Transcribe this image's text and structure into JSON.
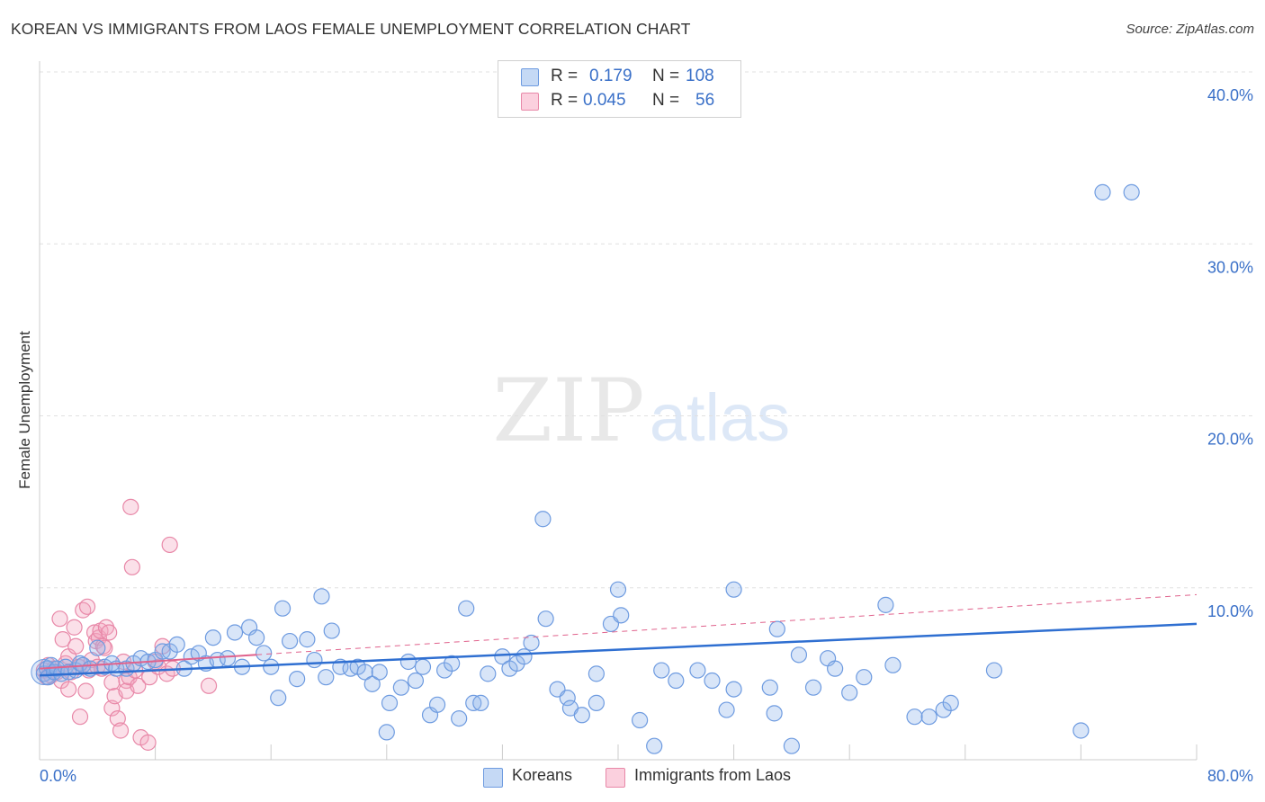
{
  "title": "KOREAN VS IMMIGRANTS FROM LAOS FEMALE UNEMPLOYMENT CORRELATION CHART",
  "source": "Source: ZipAtlas.com",
  "watermark": {
    "zip": "ZIP",
    "atlas": "atlas"
  },
  "legend": {
    "rows": [
      {
        "r_label": "R =",
        "r_value": "0.179",
        "n_label": "N =",
        "n_value": "108"
      },
      {
        "r_label": "R =",
        "r_value": "0.045",
        "n_label": "N =",
        "n_value": "56"
      }
    ]
  },
  "bottom_legend": {
    "koreans": "Koreans",
    "laos": "Immigrants from Laos"
  },
  "chart_data": {
    "type": "scatter",
    "ylabel": "Female Unemployment",
    "xlabel": "",
    "xlim": [
      0,
      80
    ],
    "ylim": [
      0,
      40
    ],
    "x_tick_labels": [
      "0.0%",
      "80.0%"
    ],
    "y_ticks": [
      10,
      20,
      30,
      40
    ],
    "y_tick_labels": [
      "10.0%",
      "20.0%",
      "30.0%",
      "40.0%"
    ],
    "grid": true,
    "colors": {
      "koreans": "#8fb4ec",
      "koreans_line": "#2f6fd1",
      "laos": "#f4a7c0",
      "laos_line": "#e0628c",
      "tick_label": "#3a70c8"
    },
    "series": [
      {
        "name": "Koreans",
        "trend": {
          "x": [
            0,
            80
          ],
          "y": [
            4.9,
            7.9
          ]
        },
        "points": [
          [
            0.3,
            5.0
          ],
          [
            0.5,
            5.3
          ],
          [
            0.6,
            4.8
          ],
          [
            0.8,
            5.5
          ],
          [
            1.0,
            5.1
          ],
          [
            1.2,
            5.3
          ],
          [
            1.5,
            5.0
          ],
          [
            1.8,
            5.4
          ],
          [
            2.0,
            5.1
          ],
          [
            2.5,
            5.2
          ],
          [
            2.8,
            5.6
          ],
          [
            3.0,
            5.5
          ],
          [
            3.5,
            5.3
          ],
          [
            4.0,
            6.5
          ],
          [
            4.5,
            5.4
          ],
          [
            5.0,
            5.6
          ],
          [
            5.3,
            5.3
          ],
          [
            6.0,
            5.3
          ],
          [
            6.5,
            5.6
          ],
          [
            7.0,
            5.9
          ],
          [
            7.5,
            5.7
          ],
          [
            8.0,
            5.8
          ],
          [
            8.5,
            6.3
          ],
          [
            9.0,
            6.3
          ],
          [
            9.5,
            6.7
          ],
          [
            10.0,
            5.3
          ],
          [
            10.5,
            6.0
          ],
          [
            11.0,
            6.2
          ],
          [
            11.5,
            5.6
          ],
          [
            12.0,
            7.1
          ],
          [
            12.3,
            5.8
          ],
          [
            13.0,
            5.9
          ],
          [
            13.5,
            7.4
          ],
          [
            14.0,
            5.4
          ],
          [
            14.5,
            7.7
          ],
          [
            15.0,
            7.1
          ],
          [
            15.5,
            6.2
          ],
          [
            16.0,
            5.4
          ],
          [
            16.5,
            3.6
          ],
          [
            16.8,
            8.8
          ],
          [
            17.3,
            6.9
          ],
          [
            17.8,
            4.7
          ],
          [
            18.5,
            7.0
          ],
          [
            19.0,
            5.8
          ],
          [
            19.5,
            9.5
          ],
          [
            19.8,
            4.8
          ],
          [
            20.2,
            7.5
          ],
          [
            20.8,
            5.4
          ],
          [
            21.5,
            5.3
          ],
          [
            22.0,
            5.4
          ],
          [
            22.5,
            5.1
          ],
          [
            23.0,
            4.4
          ],
          [
            23.5,
            5.1
          ],
          [
            24.0,
            1.6
          ],
          [
            24.2,
            3.3
          ],
          [
            25.0,
            4.2
          ],
          [
            25.5,
            5.7
          ],
          [
            26.0,
            4.6
          ],
          [
            26.5,
            5.4
          ],
          [
            27.0,
            2.6
          ],
          [
            27.5,
            3.2
          ],
          [
            28.0,
            5.2
          ],
          [
            28.5,
            5.6
          ],
          [
            29.0,
            2.4
          ],
          [
            29.5,
            8.8
          ],
          [
            30.0,
            3.3
          ],
          [
            30.5,
            3.3
          ],
          [
            31.0,
            5.0
          ],
          [
            32.0,
            6.0
          ],
          [
            32.5,
            5.3
          ],
          [
            33.0,
            5.6
          ],
          [
            33.5,
            6.0
          ],
          [
            34.0,
            6.8
          ],
          [
            34.8,
            14.0
          ],
          [
            35.0,
            8.2
          ],
          [
            35.8,
            4.1
          ],
          [
            36.5,
            3.6
          ],
          [
            36.7,
            3.0
          ],
          [
            37.5,
            2.6
          ],
          [
            38.5,
            3.3
          ],
          [
            38.5,
            5.0
          ],
          [
            39.5,
            7.9
          ],
          [
            40.0,
            9.9
          ],
          [
            40.2,
            8.4
          ],
          [
            41.5,
            2.3
          ],
          [
            42.5,
            0.8
          ],
          [
            43.0,
            5.2
          ],
          [
            44.0,
            4.6
          ],
          [
            45.5,
            5.2
          ],
          [
            46.5,
            4.6
          ],
          [
            47.5,
            2.9
          ],
          [
            48.0,
            4.1
          ],
          [
            48.0,
            9.9
          ],
          [
            50.5,
            4.2
          ],
          [
            50.8,
            2.7
          ],
          [
            51.0,
            7.6
          ],
          [
            52.0,
            0.8
          ],
          [
            52.5,
            6.1
          ],
          [
            53.5,
            4.2
          ],
          [
            54.5,
            5.9
          ],
          [
            55.0,
            5.3
          ],
          [
            56.0,
            3.9
          ],
          [
            57.0,
            4.8
          ],
          [
            58.5,
            9.0
          ],
          [
            59.0,
            5.5
          ],
          [
            60.5,
            2.5
          ],
          [
            61.5,
            2.5
          ],
          [
            62.5,
            2.9
          ],
          [
            63.0,
            3.3
          ],
          [
            66.0,
            5.2
          ],
          [
            72.0,
            1.7
          ],
          [
            73.5,
            33.0
          ],
          [
            75.5,
            33.0
          ]
        ]
      },
      {
        "name": "Immigrants from Laos",
        "trend": {
          "x": [
            0,
            80
          ],
          "y": [
            5.3,
            9.6
          ]
        },
        "points": [
          [
            0.3,
            5.2
          ],
          [
            0.5,
            4.8
          ],
          [
            0.6,
            5.5
          ],
          [
            0.8,
            4.9
          ],
          [
            1.0,
            5.3
          ],
          [
            1.2,
            5.1
          ],
          [
            1.4,
            8.2
          ],
          [
            1.5,
            4.6
          ],
          [
            1.6,
            7.0
          ],
          [
            1.8,
            5.6
          ],
          [
            2.0,
            4.1
          ],
          [
            2.0,
            6.0
          ],
          [
            2.2,
            5.1
          ],
          [
            2.4,
            7.7
          ],
          [
            2.5,
            6.6
          ],
          [
            2.7,
            5.4
          ],
          [
            2.8,
            2.5
          ],
          [
            3.0,
            8.7
          ],
          [
            3.0,
            5.5
          ],
          [
            3.2,
            4.0
          ],
          [
            3.3,
            8.9
          ],
          [
            3.4,
            5.2
          ],
          [
            3.6,
            5.8
          ],
          [
            3.8,
            7.4
          ],
          [
            3.9,
            6.9
          ],
          [
            4.0,
            5.4
          ],
          [
            4.1,
            7.1
          ],
          [
            4.2,
            7.5
          ],
          [
            4.3,
            5.3
          ],
          [
            4.4,
            6.6
          ],
          [
            4.5,
            6.5
          ],
          [
            4.6,
            7.7
          ],
          [
            4.8,
            7.4
          ],
          [
            5.0,
            4.5
          ],
          [
            5.0,
            3.0
          ],
          [
            5.2,
            3.7
          ],
          [
            5.4,
            2.4
          ],
          [
            5.6,
            1.7
          ],
          [
            5.8,
            5.7
          ],
          [
            6.0,
            4.6
          ],
          [
            6.0,
            4.0
          ],
          [
            6.2,
            4.8
          ],
          [
            6.3,
            14.7
          ],
          [
            6.4,
            11.2
          ],
          [
            6.6,
            5.2
          ],
          [
            6.8,
            4.3
          ],
          [
            7.0,
            1.3
          ],
          [
            7.5,
            1.0
          ],
          [
            7.6,
            4.8
          ],
          [
            8.0,
            5.7
          ],
          [
            8.2,
            5.4
          ],
          [
            8.5,
            6.6
          ],
          [
            8.8,
            5.0
          ],
          [
            9.0,
            12.5
          ],
          [
            9.2,
            5.3
          ],
          [
            11.7,
            4.3
          ]
        ]
      }
    ]
  }
}
